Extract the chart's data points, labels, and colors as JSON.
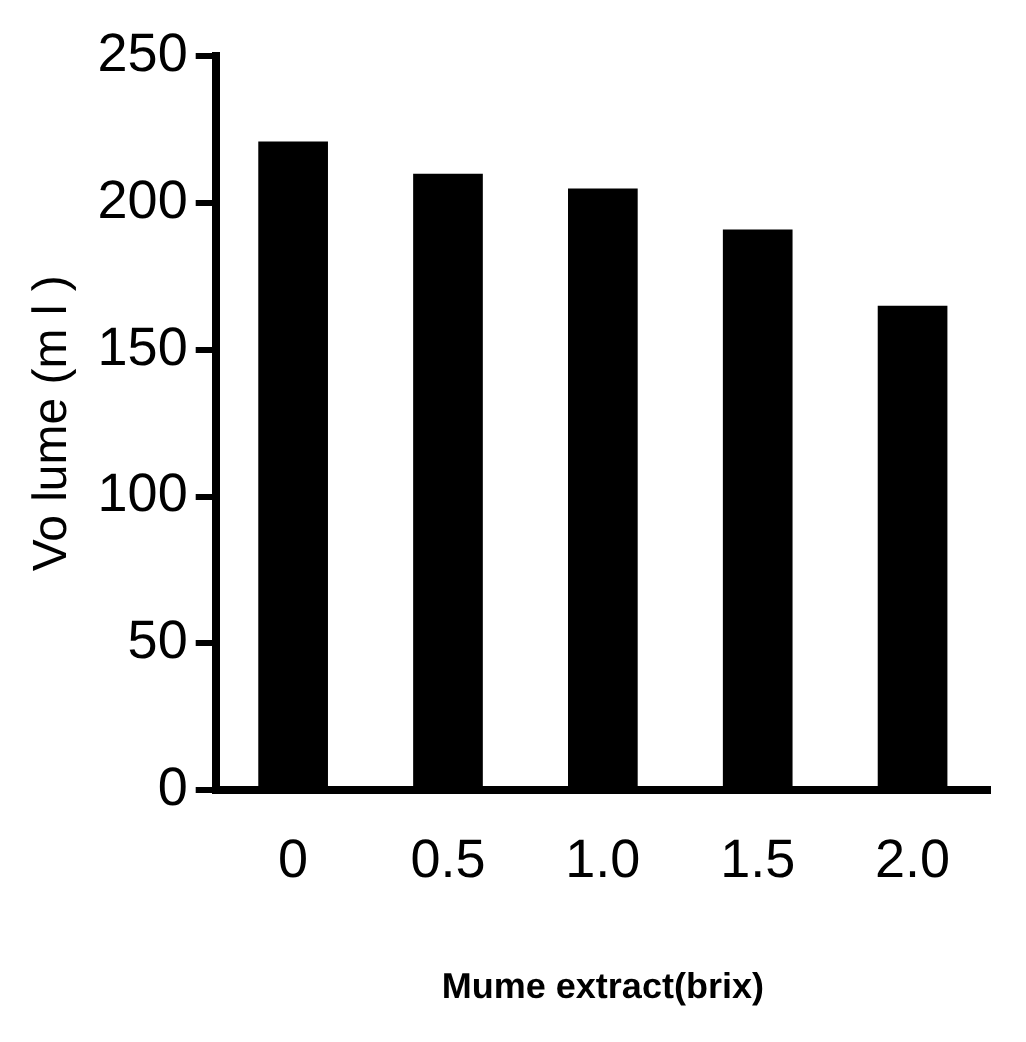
{
  "chart_data": {
    "type": "bar",
    "xlabel": "Mume extract(brix)",
    "ylabel": "Vo lume (m l )",
    "categories": [
      "0",
      "0.5",
      "1.0",
      "1.5",
      "2.0"
    ],
    "values": [
      221,
      210,
      205,
      191,
      165
    ],
    "color": "#000000",
    "ylim": [
      0,
      250
    ],
    "yticks": [
      0,
      50,
      100,
      150,
      200,
      250
    ],
    "grid": false,
    "legend": false
  }
}
